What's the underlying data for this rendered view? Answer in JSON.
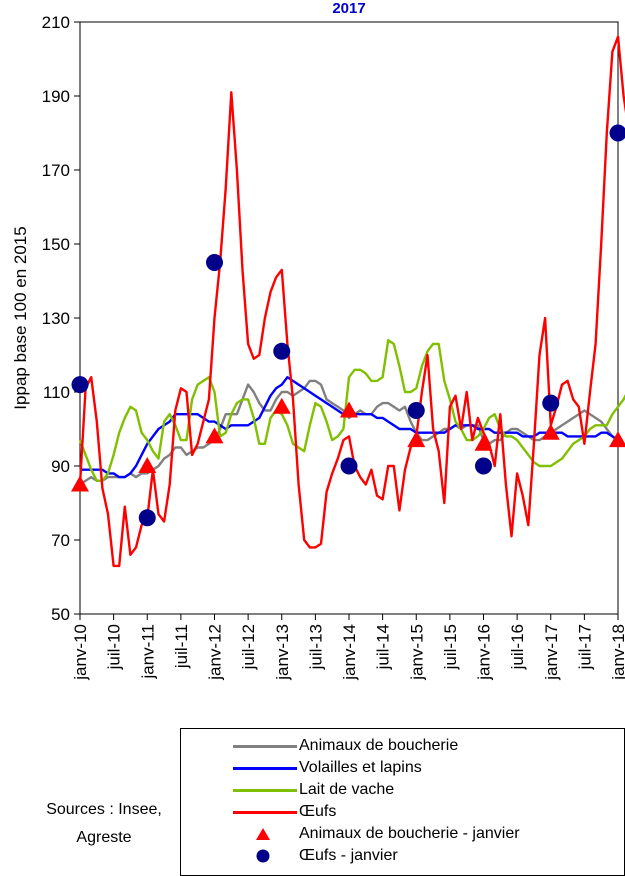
{
  "chart_data": {
    "type": "line",
    "title": "2017",
    "ylabel": "Ippap base 100 en 2015",
    "xlabel": "",
    "ylim": [
      50,
      210
    ],
    "yticks": [
      50,
      70,
      90,
      110,
      130,
      150,
      170,
      190,
      210
    ],
    "xtick_labels": [
      "janv-10",
      "juil-10",
      "janv-11",
      "juil-11",
      "janv-12",
      "juil-12",
      "janv-13",
      "juil-13",
      "janv-14",
      "juil-14",
      "janv-15",
      "juil-15",
      "janv-16",
      "juil-16",
      "janv-17",
      "juil-17",
      "janv-18"
    ],
    "x_start": "janv-10",
    "legend_position": "bottom",
    "series": [
      {
        "name": "Animaux de boucherie",
        "color": "#808080",
        "values": [
          85,
          86,
          87,
          86,
          86,
          87,
          87,
          87,
          87,
          88,
          87,
          88,
          88,
          89,
          90,
          92,
          93,
          95,
          95,
          93,
          94,
          95,
          95,
          96,
          97,
          100,
          104,
          104,
          104,
          108,
          112,
          110,
          107,
          105,
          105,
          108,
          110,
          110,
          109,
          110,
          111,
          113,
          113,
          112,
          108,
          107,
          106,
          105,
          103,
          104,
          105,
          104,
          104,
          106,
          107,
          107,
          106,
          105,
          106,
          102,
          99,
          97,
          97,
          98,
          99,
          100,
          100,
          101,
          100,
          101,
          101,
          101,
          97,
          96,
          97,
          97,
          99,
          100,
          100,
          99,
          98,
          97,
          97,
          98,
          99,
          100,
          101,
          102,
          103,
          104,
          105,
          104,
          103,
          102,
          100,
          98,
          97
        ]
      },
      {
        "name": "Volailles et lapins",
        "color": "#0000ff",
        "values": [
          89,
          89,
          89,
          89,
          89,
          88,
          88,
          87,
          87,
          88,
          90,
          93,
          96,
          98,
          100,
          101,
          102,
          104,
          104,
          104,
          104,
          104,
          103,
          102,
          102,
          101,
          100,
          101,
          101,
          101,
          101,
          102,
          103,
          106,
          109,
          111,
          112,
          114,
          113,
          112,
          111,
          110,
          109,
          108,
          107,
          106,
          105,
          104,
          104,
          104,
          104,
          104,
          104,
          103,
          103,
          102,
          101,
          100,
          100,
          100,
          99,
          99,
          99,
          99,
          99,
          99,
          100,
          101,
          101,
          101,
          101,
          100,
          100,
          100,
          99,
          99,
          99,
          99,
          99,
          98,
          98,
          98,
          99,
          99,
          99,
          99,
          99,
          98,
          98,
          98,
          98,
          98,
          98,
          99,
          99,
          98,
          97
        ]
      },
      {
        "name": "Lait de vache",
        "color": "#80c000",
        "values": [
          97,
          93,
          89,
          86,
          86,
          88,
          93,
          99,
          103,
          106,
          105,
          99,
          97,
          94,
          92,
          102,
          104,
          101,
          97,
          97,
          108,
          112,
          113,
          114,
          110,
          98,
          99,
          104,
          107,
          108,
          108,
          103,
          96,
          96,
          103,
          105,
          104,
          101,
          96,
          95,
          94,
          101,
          107,
          106,
          102,
          97,
          98,
          100,
          114,
          116,
          116,
          115,
          113,
          113,
          114,
          124,
          123,
          117,
          110,
          110,
          111,
          117,
          121,
          123,
          123,
          113,
          108,
          102,
          100,
          97,
          97,
          98,
          100,
          103,
          104,
          100,
          98,
          98,
          97,
          95,
          93,
          91,
          90,
          90,
          90,
          91,
          92,
          94,
          96,
          97,
          98,
          100,
          101,
          101,
          101,
          104,
          106,
          108,
          111,
          112,
          111,
          110,
          109,
          108,
          110,
          112
        ]
      },
      {
        "name": "Œufs",
        "color": "#ff0000",
        "values": [
          85,
          111,
          114,
          102,
          84,
          77,
          63,
          63,
          79,
          66,
          68,
          74,
          76,
          89,
          77,
          75,
          85,
          105,
          111,
          110,
          93,
          96,
          102,
          108,
          130,
          145,
          165,
          191,
          170,
          143,
          123,
          119,
          120,
          130,
          137,
          141,
          143,
          123,
          108,
          85,
          70,
          68,
          68,
          69,
          83,
          88,
          92,
          97,
          98,
          90,
          87,
          85,
          89,
          82,
          81,
          90,
          90,
          78,
          89,
          95,
          98,
          110,
          120,
          100,
          94,
          80,
          106,
          109,
          100,
          110,
          97,
          103,
          99,
          96,
          90,
          104,
          85,
          71,
          88,
          82,
          74,
          96,
          120,
          130,
          101,
          106,
          112,
          113,
          108,
          106,
          96,
          110,
          123,
          150,
          180,
          202,
          206,
          190,
          180
        ]
      },
      {
        "name": "Animaux de boucherie - janvier",
        "color": "#ff0000",
        "marker": "triangle",
        "x_labels": [
          "janv-10",
          "janv-11",
          "janv-12",
          "janv-13",
          "janv-14",
          "janv-15",
          "janv-16",
          "janv-17",
          "janv-18"
        ],
        "values": [
          85,
          90,
          98,
          106,
          105,
          97,
          96,
          99,
          97
        ]
      },
      {
        "name": "Œufs - janvier",
        "color": "#00008b",
        "marker": "circle",
        "x_labels": [
          "janv-10",
          "janv-11",
          "janv-12",
          "janv-13",
          "janv-14",
          "janv-15",
          "janv-16",
          "janv-17",
          "janv-18"
        ],
        "values": [
          112,
          76,
          145,
          121,
          90,
          105,
          90,
          107,
          180
        ]
      }
    ]
  },
  "legend": {
    "items": [
      {
        "label": "Animaux de boucherie",
        "color": "#808080",
        "kind": "line"
      },
      {
        "label": "Volailles et lapins",
        "color": "#0000ff",
        "kind": "line"
      },
      {
        "label": "Lait de vache",
        "color": "#80c000",
        "kind": "line"
      },
      {
        "label": "Œufs",
        "color": "#ff0000",
        "kind": "line"
      },
      {
        "label": "Animaux de boucherie - janvier",
        "color": "#ff0000",
        "kind": "triangle"
      },
      {
        "label": "Œufs - janvier",
        "color": "#00008b",
        "kind": "circle"
      }
    ]
  },
  "sources": {
    "line1": "Sources : Insee,",
    "line2": "Agreste"
  }
}
